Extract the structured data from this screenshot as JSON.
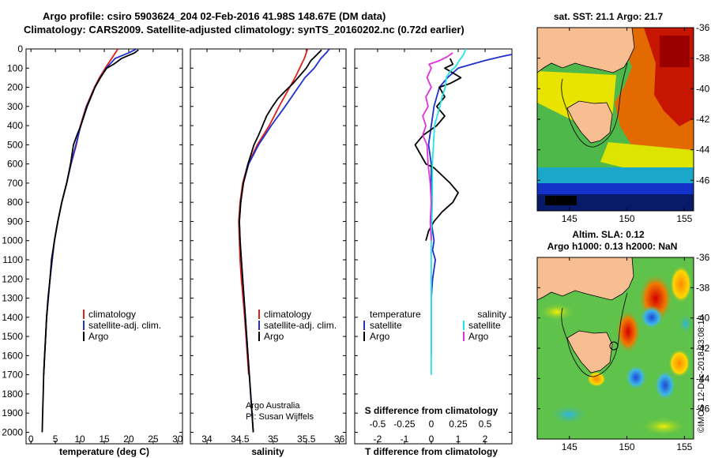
{
  "header": {
    "line1": "Argo profile: csiro 5903624_204 02-Feb-2016 41.98S 148.67E (DM data)",
    "line2": "Climatology: CARS2009. Satellite-adjusted climatology: synTS_20160202.nc (0.72d earlier)"
  },
  "colors": {
    "climatology": "#e0201b",
    "satellite": "#1f2fd0",
    "argo": "#000000",
    "salinity_sat": "#22e6e6",
    "salinity_argo": "#dd33dd",
    "land": "#f7bf91"
  },
  "credit": "Argo Australia\nPI: Susan Wijffels",
  "watermark": "©IMOS 12-Dec-2018 23:08:10",
  "chart_data": [
    {
      "type": "line",
      "panel": "temperature",
      "xlabel": "temperature (deg C)",
      "ylabel": "",
      "xlim": [
        -1,
        31
      ],
      "ylim": [
        2060,
        0
      ],
      "xticks": [
        0,
        5,
        10,
        15,
        20,
        25,
        30
      ],
      "yticks": [
        0,
        100,
        200,
        300,
        400,
        500,
        600,
        700,
        800,
        900,
        1000,
        1100,
        1200,
        1300,
        1400,
        1500,
        1600,
        1700,
        1800,
        1900,
        2000
      ],
      "ytick_labels": [
        "0",
        "100",
        "200",
        "300",
        "400",
        "500",
        "600",
        "700",
        "800",
        "900",
        "1000",
        "1100",
        "1200",
        "1300",
        "1400",
        "1500",
        "1600",
        "1700",
        "1800",
        "1900",
        "2000"
      ],
      "legend": {
        "placement": "lower-center",
        "items": [
          "climatology",
          "satellite-adj. clim.",
          "Argo"
        ]
      },
      "series": [
        {
          "name": "climatology",
          "depth": [
            0,
            50,
            100,
            150,
            200,
            300,
            400,
            500,
            600,
            700,
            800,
            900,
            1000,
            1200,
            1400,
            1600,
            1700
          ],
          "values": [
            17.8,
            16.5,
            15.2,
            14.0,
            13.0,
            11.3,
            10.1,
            9.3,
            8.2,
            7.3,
            6.3,
            5.5,
            4.8,
            3.9,
            3.2,
            2.8,
            2.6
          ]
        },
        {
          "name": "satellite-adj. clim.",
          "depth": [
            0,
            20,
            50,
            100,
            150,
            200,
            300,
            400,
            500,
            600,
            700,
            800,
            900,
            1000,
            1200,
            1400,
            1600,
            1700
          ],
          "values": [
            21.6,
            20.0,
            17.2,
            15.4,
            14.2,
            13.1,
            11.4,
            10.2,
            9.2,
            8.2,
            7.3,
            6.3,
            5.5,
            4.8,
            3.9,
            3.2,
            2.8,
            2.6
          ]
        },
        {
          "name": "Argo",
          "depth": [
            5,
            20,
            50,
            80,
            100,
            150,
            200,
            300,
            400,
            450,
            500,
            600,
            700,
            800,
            900,
            1000,
            1100,
            1200,
            1300,
            1400,
            1500,
            1600,
            1700,
            1800,
            1900,
            2000
          ],
          "values": [
            22.0,
            21.2,
            18.5,
            16.9,
            15.5,
            14.2,
            13.1,
            11.5,
            10.2,
            9.4,
            8.7,
            8.1,
            7.3,
            6.3,
            5.5,
            4.8,
            4.2,
            3.9,
            3.5,
            3.2,
            3.0,
            2.8,
            2.6,
            2.5,
            2.4,
            2.3
          ]
        }
      ]
    },
    {
      "type": "line",
      "panel": "salinity",
      "xlabel": "salinity",
      "ylabel": "",
      "xlim": [
        33.75,
        36.1
      ],
      "ylim": [
        2060,
        0
      ],
      "xticks": [
        34,
        34.5,
        35,
        35.5,
        36
      ],
      "xtick_labels": [
        "34",
        "34.5",
        "35",
        "35.5",
        "36"
      ],
      "legend": {
        "placement": "lower-center",
        "items": [
          "climatology",
          "satellite-adj. clim.",
          "Argo"
        ]
      },
      "series": [
        {
          "name": "climatology",
          "depth": [
            0,
            50,
            100,
            150,
            200,
            300,
            400,
            500,
            600,
            700,
            800,
            900,
            1000,
            1100,
            1200,
            1400,
            1600,
            1700
          ],
          "values": [
            35.52,
            35.47,
            35.4,
            35.33,
            35.25,
            35.09,
            34.94,
            34.76,
            34.62,
            34.54,
            34.5,
            34.48,
            34.49,
            34.5,
            34.52,
            34.57,
            34.61,
            34.63
          ]
        },
        {
          "name": "satellite-adj. clim.",
          "depth": [
            0,
            20,
            50,
            100,
            150,
            200,
            300,
            400,
            500,
            600,
            700,
            800,
            900,
            1000,
            1100,
            1200,
            1400,
            1600,
            1800,
            2000
          ],
          "values": [
            35.85,
            35.8,
            35.72,
            35.62,
            35.48,
            35.38,
            35.18,
            34.97,
            34.78,
            34.63,
            34.55,
            34.51,
            34.49,
            34.5,
            34.52,
            34.54,
            34.58,
            34.62,
            34.66,
            34.7
          ]
        },
        {
          "name": "Argo",
          "depth": [
            5,
            30,
            60,
            100,
            140,
            180,
            220,
            260,
            300,
            350,
            400,
            450,
            500,
            600,
            700,
            800,
            900,
            1000,
            1100,
            1200,
            1400,
            1600,
            1800,
            2000
          ],
          "values": [
            35.73,
            35.66,
            35.57,
            35.5,
            35.4,
            35.3,
            35.18,
            35.07,
            34.99,
            34.9,
            34.84,
            34.78,
            34.71,
            34.62,
            34.55,
            34.51,
            34.49,
            34.5,
            34.52,
            34.54,
            34.58,
            34.62,
            34.66,
            34.7
          ]
        }
      ]
    },
    {
      "type": "line",
      "panel": "difference",
      "xlabel": "T difference from climatology",
      "xlabel2": "S difference from climatology",
      "xlim": [
        -2.85,
        3.0
      ],
      "x2lim": [
        -0.7125,
        0.75
      ],
      "ylim": [
        2060,
        0
      ],
      "xticks": [
        -2,
        -1,
        0,
        1,
        2
      ],
      "x2ticks": [
        -0.5,
        -0.25,
        0,
        0.25,
        0.5
      ],
      "x2tick_labels": [
        "-0.5",
        "-0.25",
        "0",
        "0.25",
        "0.5"
      ],
      "legend_temperature": {
        "title": "temperature",
        "items": [
          "satellite",
          "Argo"
        ]
      },
      "legend_salinity": {
        "title": "salinity",
        "items": [
          "satellite",
          "Argo"
        ]
      },
      "series": [
        {
          "name": "satellite",
          "group": "temperature",
          "depth": [
            0,
            20,
            40,
            60,
            80,
            100,
            150,
            200,
            300,
            400,
            500,
            600,
            700,
            800,
            900,
            1000,
            1050,
            1100,
            1200,
            1300,
            1400,
            1500,
            1600
          ],
          "values": [
            3.8,
            3.3,
            2.6,
            2.0,
            1.5,
            1.0,
            0.6,
            0.3,
            0.1,
            0.0,
            -0.1,
            0.0,
            0.0,
            0.0,
            0.0,
            0.1,
            0.05,
            0.15,
            0.05,
            0.0,
            0.0,
            0.0,
            0.0
          ]
        },
        {
          "name": "Argo",
          "group": "temperature",
          "depth": [
            50,
            80,
            100,
            150,
            180,
            200,
            250,
            300,
            350,
            400,
            450,
            500,
            550,
            600,
            620,
            700,
            750,
            800,
            850,
            900,
            950,
            1000
          ],
          "values": [
            0.7,
            0.8,
            0.5,
            1.1,
            0.7,
            0.3,
            0.5,
            0.2,
            0.5,
            0.2,
            -0.3,
            -0.6,
            -0.4,
            -0.2,
            0.1,
            0.7,
            1.0,
            0.8,
            0.4,
            0.1,
            -0.1,
            -0.2
          ]
        },
        {
          "name": "satellite",
          "group": "salinity",
          "depth": [
            0,
            30,
            60,
            90,
            120,
            150,
            200,
            250,
            300,
            400,
            500,
            600,
            800,
            1000,
            1200,
            1400,
            1600,
            1700
          ],
          "values": [
            0.32,
            0.3,
            0.26,
            0.23,
            0.17,
            0.14,
            0.13,
            0.1,
            0.08,
            0.03,
            0.02,
            0.01,
            0.01,
            0.0,
            0.0,
            0.0,
            0.0,
            0.0
          ]
        },
        {
          "name": "Argo",
          "group": "salinity",
          "depth": [
            20,
            40,
            60,
            80,
            100,
            150,
            200,
            250,
            300,
            350,
            400,
            450,
            500,
            600,
            700,
            800,
            900,
            1000
          ],
          "values": [
            0.2,
            0.15,
            0.08,
            -0.02,
            0.0,
            -0.04,
            0.0,
            -0.05,
            -0.03,
            -0.08,
            -0.05,
            -0.08,
            -0.04,
            -0.03,
            -0.01,
            0.0,
            -0.01,
            0.0
          ]
        }
      ]
    },
    {
      "type": "heatmap",
      "panel": "sst_map",
      "title": "sat. SST: 21.1 Argo: 21.7",
      "xticks": [
        145,
        150,
        155
      ],
      "yticks": [
        -36,
        -38,
        -40,
        -42,
        -44,
        -46
      ],
      "xlim": [
        142.2,
        155.8
      ],
      "ylim": [
        -48,
        -36
      ]
    },
    {
      "type": "heatmap",
      "panel": "sla_map",
      "title": "Altim. SLA: 0.12",
      "subtitle": "Argo h1000: 0.13 h2000: NaN",
      "xticks": [
        145,
        150,
        155
      ],
      "yticks": [
        -36,
        -38,
        -40,
        -42,
        -44,
        -46
      ],
      "xlim": [
        142.2,
        155.8
      ],
      "ylim": [
        -48,
        -36
      ]
    }
  ]
}
